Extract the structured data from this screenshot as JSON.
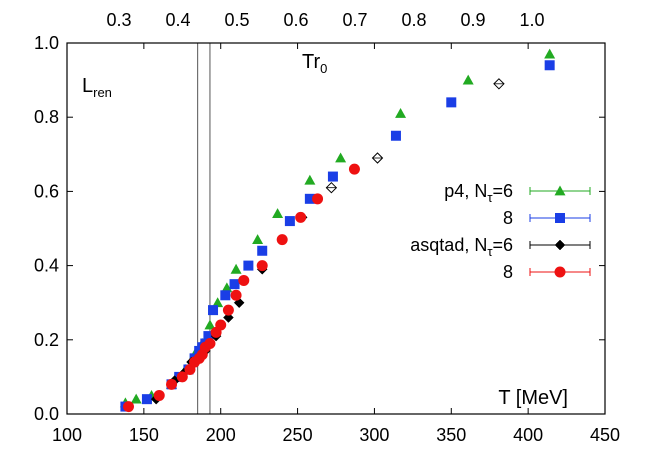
{
  "chart_data": {
    "type": "scatter",
    "xlim": [
      100,
      450
    ],
    "ylim": [
      0.0,
      1.0
    ],
    "x_ticks": [
      "100",
      "150",
      "200",
      "250",
      "300",
      "350",
      "400",
      "450"
    ],
    "y_ticks": [
      "0.0",
      "0.2",
      "0.4",
      "0.6",
      "0.8",
      "1.0"
    ],
    "top_ticks": [
      "0.3",
      "0.4",
      "0.5",
      "0.6",
      "0.7",
      "0.8",
      "0.9",
      "1.0"
    ],
    "top_tick_x": [
      119,
      178,
      237,
      296,
      355,
      414,
      473,
      532
    ],
    "vertical_lines": [
      185,
      193
    ],
    "annotations": {
      "l_main": "L",
      "l_sub": "ren",
      "tr_main": "Tr",
      "tr_sub": "0",
      "xlabel": "T [MeV]"
    },
    "legend_position": "right",
    "legend": [
      {
        "main": "p4, N",
        "sub": "τ",
        "tail": "=6",
        "color": "#22aa22",
        "marker": "triangle"
      },
      {
        "main": "8",
        "sub": "",
        "tail": "",
        "color": "#1a3ee6",
        "marker": "square"
      },
      {
        "main": "asqtad, N",
        "sub": "τ",
        "tail": "=6",
        "color": "#000000",
        "marker": "diamond"
      },
      {
        "main": "8",
        "sub": "",
        "tail": "",
        "color": "#ee1111",
        "marker": "circle"
      }
    ],
    "series": [
      {
        "name": "p4, Nτ=6",
        "color": "#22aa22",
        "marker": "triangle",
        "points": [
          [
            138,
            0.03
          ],
          [
            145,
            0.04
          ],
          [
            155,
            0.05
          ],
          [
            168,
            0.08
          ],
          [
            177,
            0.12
          ],
          [
            183,
            0.16
          ],
          [
            188,
            0.19
          ],
          [
            193,
            0.24
          ],
          [
            198,
            0.3
          ],
          [
            204,
            0.34
          ],
          [
            210,
            0.39
          ],
          [
            224,
            0.47
          ],
          [
            237,
            0.54
          ],
          [
            258,
            0.63
          ],
          [
            278,
            0.69
          ],
          [
            317,
            0.81
          ],
          [
            361,
            0.9
          ],
          [
            414,
            0.97
          ]
        ]
      },
      {
        "name": "8",
        "color": "#1a3ee6",
        "marker": "square",
        "points": [
          [
            138,
            0.02
          ],
          [
            152,
            0.04
          ],
          [
            168,
            0.08
          ],
          [
            173,
            0.1
          ],
          [
            179,
            0.12
          ],
          [
            183,
            0.15
          ],
          [
            186,
            0.17
          ],
          [
            188,
            0.18
          ],
          [
            190,
            0.19
          ],
          [
            192,
            0.21
          ],
          [
            195,
            0.28
          ],
          [
            203,
            0.32
          ],
          [
            209,
            0.35
          ],
          [
            218,
            0.4
          ],
          [
            227,
            0.44
          ],
          [
            245,
            0.52
          ],
          [
            258,
            0.58
          ],
          [
            273,
            0.64
          ],
          [
            314,
            0.75
          ],
          [
            350,
            0.84
          ],
          [
            414,
            0.94
          ]
        ]
      },
      {
        "name": "asqtad, Nτ=6",
        "color": "#000000",
        "marker": "diamond",
        "points": [
          [
            158,
            0.04
          ],
          [
            170,
            0.09
          ],
          [
            176,
            0.11
          ],
          [
            181,
            0.14
          ],
          [
            185,
            0.15
          ],
          [
            190,
            0.17
          ],
          [
            197,
            0.21
          ],
          [
            205,
            0.26
          ],
          [
            212,
            0.3
          ],
          [
            227,
            0.39
          ],
          [
            253,
            0.53
          ],
          [
            272,
            0.61
          ],
          [
            302,
            0.69
          ],
          [
            381,
            0.89
          ]
        ],
        "open_from_index": 11
      },
      {
        "name": "8",
        "color": "#ee1111",
        "marker": "circle",
        "points": [
          [
            140,
            0.02
          ],
          [
            160,
            0.05
          ],
          [
            168,
            0.08
          ],
          [
            175,
            0.1
          ],
          [
            180,
            0.12
          ],
          [
            183,
            0.14
          ],
          [
            186,
            0.15
          ],
          [
            188,
            0.16
          ],
          [
            190,
            0.18
          ],
          [
            193,
            0.19
          ],
          [
            197,
            0.22
          ],
          [
            200,
            0.24
          ],
          [
            205,
            0.28
          ],
          [
            210,
            0.32
          ],
          [
            215,
            0.36
          ],
          [
            227,
            0.4
          ],
          [
            240,
            0.47
          ],
          [
            252,
            0.53
          ],
          [
            263,
            0.58
          ],
          [
            287,
            0.66
          ]
        ]
      }
    ]
  }
}
